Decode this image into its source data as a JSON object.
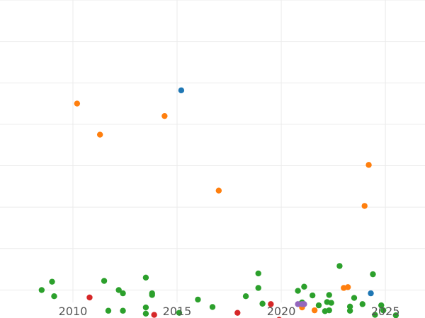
{
  "chart_data": {
    "type": "scatter",
    "title": "",
    "xlabel": "",
    "ylabel": "",
    "xlim": [
      2006.5,
      2026.9
    ],
    "ylim": [
      -0.3,
      7.0
    ],
    "grid": true,
    "x_ticks": [
      2010,
      2015,
      2020,
      2025
    ],
    "x_tick_labels": [
      "2010",
      "2015",
      "2020",
      "2025"
    ],
    "y_gridlines": [
      0,
      1,
      2,
      3,
      4,
      5,
      6,
      7
    ],
    "legend": "none",
    "series": [
      {
        "color": "#2ca02c",
        "points": [
          [
            2008.5,
            0.0
          ],
          [
            2009.0,
            0.2
          ],
          [
            2009.1,
            -0.15
          ],
          [
            2011.5,
            0.22
          ],
          [
            2011.7,
            -0.5
          ],
          [
            2012.2,
            0.0
          ],
          [
            2012.4,
            -0.08
          ],
          [
            2012.4,
            -0.5
          ],
          [
            2013.5,
            0.3
          ],
          [
            2013.5,
            -0.42
          ],
          [
            2013.5,
            -0.57
          ],
          [
            2013.8,
            -0.08
          ],
          [
            2013.8,
            -0.12
          ],
          [
            2015.1,
            -0.55
          ],
          [
            2016.0,
            -0.23
          ],
          [
            2016.7,
            -0.41
          ],
          [
            2018.3,
            -0.15
          ],
          [
            2018.9,
            0.4
          ],
          [
            2018.9,
            0.05
          ],
          [
            2019.1,
            -0.33
          ],
          [
            2020.8,
            -0.02
          ],
          [
            2021.0,
            -0.3
          ],
          [
            2021.1,
            0.08
          ],
          [
            2021.5,
            -0.13
          ],
          [
            2021.8,
            -0.37
          ],
          [
            2022.1,
            -0.51
          ],
          [
            2022.2,
            -0.29
          ],
          [
            2022.3,
            -0.12
          ],
          [
            2022.3,
            -0.49
          ],
          [
            2022.4,
            -0.31
          ],
          [
            2022.8,
            0.58
          ],
          [
            2023.3,
            -0.4
          ],
          [
            2023.3,
            -0.5
          ],
          [
            2023.5,
            -0.19
          ],
          [
            2023.9,
            -0.34
          ],
          [
            2024.4,
            0.38
          ],
          [
            2024.5,
            -0.6
          ],
          [
            2024.8,
            -0.37
          ],
          [
            2024.9,
            -0.49
          ],
          [
            2025.5,
            -0.61
          ],
          [
            2025.5,
            -0.76
          ],
          [
            2025.5,
            -0.79
          ]
        ]
      },
      {
        "color": "#ff7f0e",
        "points": [
          [
            2010.2,
            4.5
          ],
          [
            2011.3,
            3.75
          ],
          [
            2014.4,
            4.2
          ],
          [
            2017.0,
            2.4
          ],
          [
            2021.0,
            -0.42
          ],
          [
            2021.6,
            -0.49
          ],
          [
            2023.0,
            0.05
          ],
          [
            2023.2,
            0.07
          ],
          [
            2024.0,
            2.03
          ],
          [
            2024.2,
            3.02
          ]
        ]
      },
      {
        "color": "#1f77b4",
        "points": [
          [
            2015.2,
            4.82
          ],
          [
            2024.3,
            -0.08
          ]
        ]
      },
      {
        "color": "#d62728",
        "points": [
          [
            2010.8,
            -0.18
          ],
          [
            2013.9,
            -0.6
          ],
          [
            2017.9,
            -0.55
          ],
          [
            2019.5,
            -0.34
          ],
          [
            2019.9,
            -0.72
          ],
          [
            2020.4,
            -0.78
          ]
        ]
      },
      {
        "color": "#9467bd",
        "points": [
          [
            2020.8,
            -0.34
          ],
          [
            2021.0,
            -0.34
          ],
          [
            2021.1,
            -0.34
          ]
        ]
      }
    ]
  }
}
